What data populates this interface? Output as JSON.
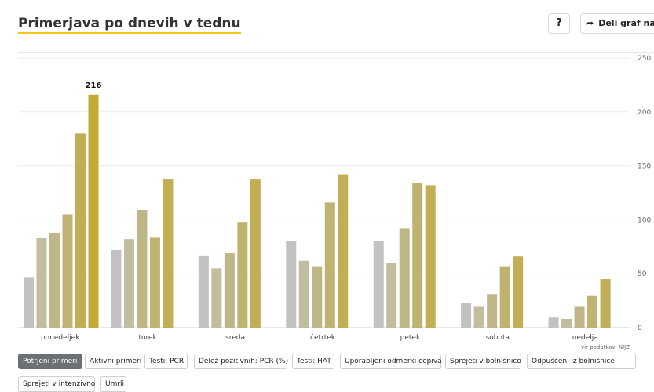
{
  "header": {
    "title": "Primerjava po dnevih v tednu",
    "help_label": "?",
    "share_label": "Deli graf na"
  },
  "source": "vir podatkov: NIJZ",
  "tabs": [
    {
      "label": "Potrjeni primeri",
      "active": true
    },
    {
      "label": "Aktivni primeri",
      "active": false
    },
    {
      "label": "Testi: PCR",
      "active": false
    },
    {
      "label": "Delež pozitivnih: PCR (%)",
      "active": false
    },
    {
      "label": "Testi: HAT",
      "active": false
    },
    {
      "label": "Uporabljeni odmerki cepiva",
      "active": false
    },
    {
      "label": "Sprejeti v bolnišnico",
      "active": false
    },
    {
      "label": "Odpuščeni iz bolnišnice",
      "active": false
    },
    {
      "label": "Sprejeti v intenzivno",
      "active": false
    },
    {
      "label": "Umrli",
      "active": false
    }
  ],
  "chart_data": {
    "type": "bar",
    "categories": [
      "ponedeljek",
      "torek",
      "sreda",
      "četrtek",
      "petek",
      "sobota",
      "nedelja"
    ],
    "series_colors": [
      "#c2c2c2",
      "#c1bd9f",
      "#bfb687",
      "#c0b270",
      "#c2ae54",
      "#c3aa35"
    ],
    "values": [
      [
        47,
        83,
        88,
        105,
        180,
        216
      ],
      [
        72,
        82,
        109,
        84,
        138
      ],
      [
        67,
        55,
        69,
        98,
        138
      ],
      [
        80,
        62,
        57,
        116,
        142
      ],
      [
        80,
        60,
        92,
        134,
        132
      ],
      [
        23,
        20,
        31,
        57,
        66
      ],
      [
        10,
        8,
        20,
        30,
        45
      ]
    ],
    "data_labels": [
      {
        "category": "ponedeljek",
        "value": "216"
      }
    ],
    "yticks": [
      "0",
      "50",
      "100",
      "150",
      "200",
      "250"
    ],
    "ylim": [
      0,
      250
    ],
    "grid": true
  }
}
